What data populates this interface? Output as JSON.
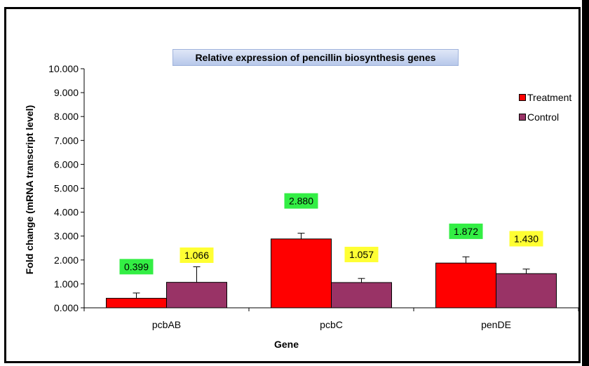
{
  "chart_data": {
    "type": "bar",
    "title": "Relative expression of pencillin biosynthesis genes",
    "xlabel": "Gene",
    "ylabel": "Fold change (mRNA transcript level)",
    "categories": [
      "pcbAB",
      "pcbC",
      "penDE"
    ],
    "ylim": [
      0,
      10
    ],
    "yticks": [
      "0.000",
      "1.000",
      "2.000",
      "3.000",
      "4.000",
      "5.000",
      "6.000",
      "7.000",
      "8.000",
      "9.000",
      "10.000"
    ],
    "series": [
      {
        "name": "Treatment",
        "color": "#ff0000",
        "values": [
          0.399,
          2.88,
          1.872
        ],
        "errors": [
          0.22,
          0.24,
          0.26
        ],
        "labels": [
          "0.399",
          "2.880",
          "1.872"
        ],
        "label_bg": "#33ee44"
      },
      {
        "name": "Control",
        "color": "#993366",
        "values": [
          1.066,
          1.057,
          1.43
        ],
        "errors": [
          0.65,
          0.17,
          0.19
        ],
        "labels": [
          "1.066",
          "1.057",
          "1.430"
        ],
        "label_bg": "#ffff33"
      }
    ],
    "label_values": [
      [
        1.72,
        2.2
      ],
      [
        4.47,
        2.23
      ],
      [
        3.2,
        2.89
      ]
    ],
    "legend_position": "top-right",
    "grid": false
  }
}
